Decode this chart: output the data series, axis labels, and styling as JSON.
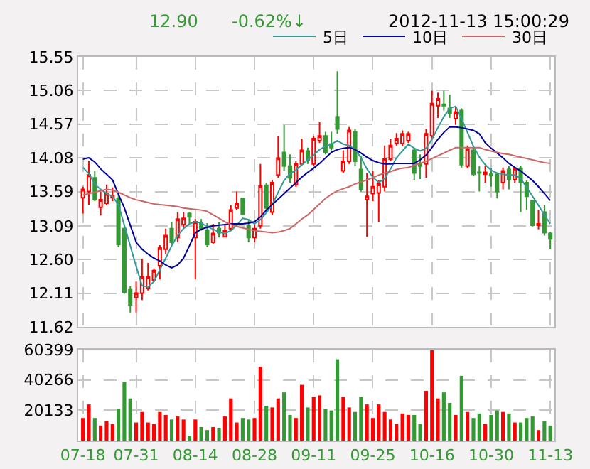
{
  "chart_data": [
    {
      "type": "candlestick",
      "annotations": [
        "12.90",
        "-0.62%↓",
        "2012-11-13 15:00:29"
      ],
      "categories": [
        null,
        null,
        null,
        null,
        null,
        null,
        null,
        null,
        null,
        null,
        null,
        null,
        null,
        null,
        null,
        null,
        null,
        null,
        null,
        null,
        null,
        null,
        null,
        null,
        null,
        null,
        null,
        null,
        null,
        null,
        null,
        null,
        null,
        null,
        null,
        null,
        null,
        null,
        null,
        null,
        null,
        null,
        null,
        null,
        null,
        null,
        null,
        null,
        null,
        null,
        null,
        null,
        null,
        null,
        null,
        null,
        null,
        null,
        null,
        null,
        null,
        null,
        null,
        null,
        null,
        null,
        null,
        null,
        null,
        null,
        null,
        null,
        null,
        null,
        null,
        null,
        null,
        null,
        null,
        null
      ],
      "ohlc": [
        [
          13.5,
          13.66,
          13.27,
          13.62
        ],
        [
          13.59,
          14.03,
          13.4,
          13.83
        ],
        [
          13.79,
          13.89,
          13.45,
          13.47
        ],
        [
          13.36,
          13.59,
          13.24,
          13.47
        ],
        [
          13.42,
          13.69,
          13.39,
          13.56
        ],
        [
          13.5,
          13.65,
          13.45,
          13.53
        ],
        [
          13.49,
          13.56,
          12.78,
          12.82
        ],
        [
          13.05,
          13.1,
          12.1,
          12.12
        ],
        [
          12.17,
          12.22,
          11.83,
          11.94
        ],
        [
          12.05,
          12.28,
          11.83,
          12.11
        ],
        [
          12.11,
          12.61,
          12.01,
          12.35
        ],
        [
          12.18,
          12.55,
          12.15,
          12.35
        ],
        [
          12.3,
          12.47,
          12.27,
          12.44
        ],
        [
          12.51,
          12.81,
          12.31,
          12.77
        ],
        [
          12.75,
          13.05,
          12.68,
          12.95
        ],
        [
          13.05,
          13.15,
          12.82,
          12.85
        ],
        [
          12.92,
          13.29,
          12.85,
          13.19
        ],
        [
          13.11,
          13.29,
          13.05,
          13.2
        ],
        [
          13.27,
          13.29,
          13.12,
          13.22
        ],
        [
          12.92,
          13.19,
          12.31,
          13.15
        ],
        [
          13.13,
          13.19,
          13.02,
          13.05
        ],
        [
          13.03,
          13.13,
          12.78,
          12.82
        ],
        [
          12.85,
          13.12,
          12.82,
          12.98
        ],
        [
          13.05,
          13.15,
          12.92,
          12.99
        ],
        [
          12.93,
          13.12,
          12.92,
          13.02
        ],
        [
          13.05,
          13.39,
          13.02,
          13.32
        ],
        [
          13.35,
          13.59,
          13.32,
          13.42
        ],
        [
          13.49,
          13.5,
          13.25,
          13.26
        ],
        [
          13.09,
          13.19,
          12.85,
          12.92
        ],
        [
          12.92,
          13.12,
          12.85,
          13.05
        ],
        [
          13.09,
          13.99,
          13.05,
          13.67
        ],
        [
          13.68,
          13.72,
          13.29,
          13.35
        ],
        [
          13.29,
          13.76,
          13.25,
          13.72
        ],
        [
          13.83,
          14.4,
          13.79,
          14.08
        ],
        [
          14.16,
          14.56,
          13.89,
          13.96
        ],
        [
          13.96,
          14.13,
          13.72,
          13.79
        ],
        [
          13.69,
          14.03,
          13.66,
          13.99
        ],
        [
          13.99,
          14.36,
          13.96,
          14.19
        ],
        [
          14.18,
          14.23,
          13.99,
          14.05
        ],
        [
          13.99,
          14.4,
          13.96,
          14.36
        ],
        [
          14.33,
          14.6,
          14.3,
          14.4
        ],
        [
          14.4,
          14.46,
          14.13,
          14.16
        ],
        [
          14.28,
          14.46,
          14.19,
          14.23
        ],
        [
          14.68,
          15.34,
          14.43,
          14.5
        ],
        [
          13.89,
          14.19,
          13.86,
          14.03
        ],
        [
          14.03,
          14.53,
          13.99,
          14.48
        ],
        [
          14.46,
          14.5,
          13.96,
          14.03
        ],
        [
          13.91,
          14.11,
          13.59,
          13.62
        ],
        [
          13.47,
          13.86,
          12.93,
          13.52
        ],
        [
          13.56,
          13.89,
          13.45,
          13.66
        ],
        [
          13.57,
          13.76,
          13.15,
          13.7
        ],
        [
          13.66,
          14.26,
          13.59,
          14.06
        ],
        [
          14.06,
          14.36,
          14.03,
          14.26
        ],
        [
          14.29,
          14.44,
          14.26,
          14.36
        ],
        [
          14.29,
          14.48,
          14.25,
          14.43
        ],
        [
          14.33,
          14.46,
          14.3,
          14.43
        ],
        [
          14.19,
          14.23,
          13.76,
          13.86
        ],
        [
          13.99,
          14.13,
          13.77,
          13.96
        ],
        [
          13.99,
          14.5,
          13.79,
          14.43
        ],
        [
          14.4,
          15.06,
          14.36,
          14.87
        ],
        [
          14.84,
          15.03,
          14.66,
          14.94
        ],
        [
          14.86,
          15.06,
          14.77,
          14.84
        ],
        [
          14.8,
          15.0,
          14.66,
          14.73
        ],
        [
          14.65,
          14.82,
          14.56,
          14.75
        ],
        [
          14.77,
          14.8,
          13.94,
          13.98
        ],
        [
          13.96,
          14.26,
          13.93,
          14.21
        ],
        [
          14.19,
          14.23,
          13.82,
          13.84
        ],
        [
          13.87,
          13.96,
          13.59,
          13.86
        ],
        [
          13.84,
          13.96,
          13.72,
          13.87
        ],
        [
          13.84,
          13.93,
          13.66,
          13.82
        ],
        [
          13.84,
          13.86,
          13.49,
          13.59
        ],
        [
          13.72,
          13.94,
          13.62,
          13.89
        ],
        [
          13.91,
          13.96,
          13.62,
          13.76
        ],
        [
          13.76,
          13.94,
          13.72,
          13.93
        ],
        [
          13.93,
          13.96,
          13.29,
          13.72
        ],
        [
          13.72,
          13.76,
          13.32,
          13.52
        ],
        [
          13.45,
          13.47,
          13.08,
          13.1
        ],
        [
          13.1,
          13.32,
          13.04,
          13.12
        ],
        [
          13.29,
          13.39,
          12.95,
          12.99
        ],
        [
          12.98,
          13.0,
          12.75,
          12.9
        ]
      ],
      "series": [
        {
          "type": "line",
          "name": "5日",
          "color": "#339999",
          "values": [
            13.94,
            13.85,
            13.7,
            13.62,
            13.56,
            13.52,
            13.4,
            13.1,
            12.8,
            12.5,
            12.22,
            12.2,
            12.28,
            12.45,
            12.62,
            12.8,
            12.95,
            13.05,
            13.12,
            13.15,
            13.13,
            13.08,
            13.04,
            13.0,
            12.98,
            13.02,
            13.1,
            13.2,
            13.18,
            13.12,
            13.18,
            13.28,
            13.4,
            13.58,
            13.75,
            13.85,
            13.9,
            13.98,
            14.05,
            14.12,
            14.2,
            14.25,
            14.28,
            14.33,
            14.28,
            14.26,
            14.2,
            14.08,
            13.92,
            13.8,
            13.72,
            13.78,
            13.92,
            14.08,
            14.18,
            14.28,
            14.22,
            14.18,
            14.22,
            14.35,
            14.52,
            14.68,
            14.8,
            14.83,
            14.65,
            14.45,
            14.25,
            14.09,
            13.98,
            13.9,
            13.86,
            13.84,
            13.83,
            13.83,
            13.78,
            13.65,
            13.52,
            13.39,
            13.25,
            13.12
          ]
        },
        {
          "type": "line",
          "name": "10日",
          "color": "#000099",
          "values": [
            14.06,
            14.08,
            14.02,
            13.92,
            13.84,
            13.76,
            13.55,
            13.35,
            13.1,
            12.85,
            12.75,
            12.68,
            12.62,
            12.58,
            12.52,
            12.48,
            12.52,
            12.62,
            12.8,
            12.99,
            13.04,
            13.07,
            13.09,
            13.1,
            13.11,
            13.12,
            13.12,
            13.12,
            13.13,
            13.15,
            13.22,
            13.32,
            13.4,
            13.48,
            13.56,
            13.64,
            13.72,
            13.8,
            13.87,
            13.93,
            14.0,
            14.08,
            14.16,
            14.2,
            14.22,
            14.23,
            14.2,
            14.15,
            14.09,
            14.04,
            14.01,
            13.99,
            13.99,
            14.0,
            14.0,
            14.0,
            14.0,
            14.05,
            14.12,
            14.23,
            14.35,
            14.45,
            14.53,
            14.53,
            14.52,
            14.5,
            14.48,
            14.43,
            14.3,
            14.22,
            14.15,
            14.08,
            14.0,
            13.94,
            13.89,
            13.82,
            13.75,
            13.66,
            13.56,
            13.46
          ]
        },
        {
          "type": "line",
          "name": "30日",
          "color": "#cc6666",
          "values": [
            13.54,
            13.56,
            13.58,
            13.6,
            13.62,
            13.61,
            13.58,
            13.54,
            13.5,
            13.47,
            13.45,
            13.43,
            13.41,
            13.4,
            13.39,
            13.38,
            13.37,
            13.35,
            13.34,
            13.33,
            13.32,
            13.3,
            13.25,
            13.2,
            13.15,
            13.11,
            13.08,
            13.06,
            13.04,
            13.02,
            13.01,
            13.0,
            12.99,
            13.0,
            13.02,
            13.05,
            13.12,
            13.19,
            13.25,
            13.33,
            13.41,
            13.49,
            13.55,
            13.6,
            13.63,
            13.66,
            13.7,
            13.73,
            13.76,
            13.79,
            13.83,
            13.86,
            13.88,
            13.91,
            13.93,
            13.94,
            13.97,
            14.0,
            14.03,
            14.07,
            14.11,
            14.15,
            14.19,
            14.23,
            14.23,
            14.23,
            14.23,
            14.23,
            14.2,
            14.18,
            14.16,
            14.14,
            14.13,
            14.11,
            14.09,
            14.07,
            14.05,
            14.03,
            14.01,
            14.0
          ]
        }
      ],
      "ylim": [
        11.62,
        15.55
      ],
      "yticks": [
        11.62,
        12.11,
        {
          "value": 12.6,
          "label": "12.60"
        },
        13.09,
        13.59,
        14.08,
        14.57,
        15.06,
        15.55
      ],
      "grid": true,
      "legend": "top right",
      "tick_labels": "y"
    },
    {
      "type": "bar",
      "categories": [
        "07-18",
        null,
        null,
        null,
        null,
        null,
        null,
        null,
        null,
        "07-31",
        null,
        null,
        null,
        null,
        null,
        null,
        null,
        null,
        null,
        "08-14",
        null,
        null,
        null,
        null,
        null,
        null,
        null,
        null,
        null,
        "08-28",
        null,
        null,
        null,
        null,
        null,
        null,
        null,
        null,
        null,
        "09-11",
        null,
        null,
        null,
        null,
        null,
        null,
        null,
        null,
        null,
        "09-25",
        null,
        null,
        null,
        null,
        null,
        null,
        null,
        null,
        null,
        "10-16",
        null,
        null,
        null,
        null,
        null,
        null,
        null,
        null,
        null,
        "10-30",
        null,
        null,
        null,
        null,
        null,
        null,
        null,
        null,
        null,
        "11-13"
      ],
      "values": [
        15000,
        24000,
        15000,
        10000,
        13000,
        11000,
        21000,
        39000,
        28000,
        12000,
        19000,
        12000,
        11000,
        19000,
        17000,
        14000,
        16000,
        14000,
        3000,
        14000,
        9000,
        7000,
        9000,
        8000,
        16000,
        28000,
        12000,
        15000,
        14000,
        15000,
        49000,
        23000,
        22000,
        28000,
        32000,
        17000,
        15000,
        37000,
        22000,
        29000,
        30000,
        21000,
        20000,
        54000,
        29000,
        22000,
        19000,
        29000,
        24000,
        15000,
        24000,
        19000,
        14000,
        11000,
        18000,
        17000,
        17000,
        11000,
        33000,
        60000,
        28000,
        32000,
        25000,
        17000,
        43000,
        19000,
        15000,
        18000,
        11000,
        17000,
        20000,
        19000,
        18000,
        12000,
        12000,
        15000,
        16000,
        7000,
        13000,
        10000
      ],
      "colors": [
        "#ff0000",
        "#ff0000",
        "#339933",
        "#ff0000",
        "#ff0000",
        "#ff0000",
        "#339933",
        "#339933",
        "#339933",
        "#ff0000",
        "#ff0000",
        "#ff0000",
        "#ff0000",
        "#ff0000",
        "#ff0000",
        "#339933",
        "#ff0000",
        "#ff0000",
        "#339933",
        "#ff0000",
        "#339933",
        "#339933",
        "#ff0000",
        "#339933",
        "#ff0000",
        "#ff0000",
        "#ff0000",
        "#339933",
        "#339933",
        "#ff0000",
        "#ff0000",
        "#339933",
        "#ff0000",
        "#ff0000",
        "#339933",
        "#339933",
        "#ff0000",
        "#ff0000",
        "#339933",
        "#ff0000",
        "#ff0000",
        "#339933",
        "#339933",
        "#339933",
        "#ff0000",
        "#ff0000",
        "#339933",
        "#339933",
        "#ff0000",
        "#ff0000",
        "#ff0000",
        "#ff0000",
        "#ff0000",
        "#ff0000",
        "#ff0000",
        "#ff0000",
        "#339933",
        "#339933",
        "#ff0000",
        "#ff0000",
        "#ff0000",
        "#339933",
        "#339933",
        "#ff0000",
        "#339933",
        "#ff0000",
        "#339933",
        "#339933",
        "#ff0000",
        "#339933",
        "#339933",
        "#ff0000",
        "#339933",
        "#ff0000",
        "#339933",
        "#339933",
        "#339933",
        "#ff0000",
        "#339933",
        "#339933"
      ],
      "ylim": [
        0,
        60399
      ],
      "yticks": [
        20133,
        40266,
        60399
      ],
      "grid": true
    }
  ]
}
